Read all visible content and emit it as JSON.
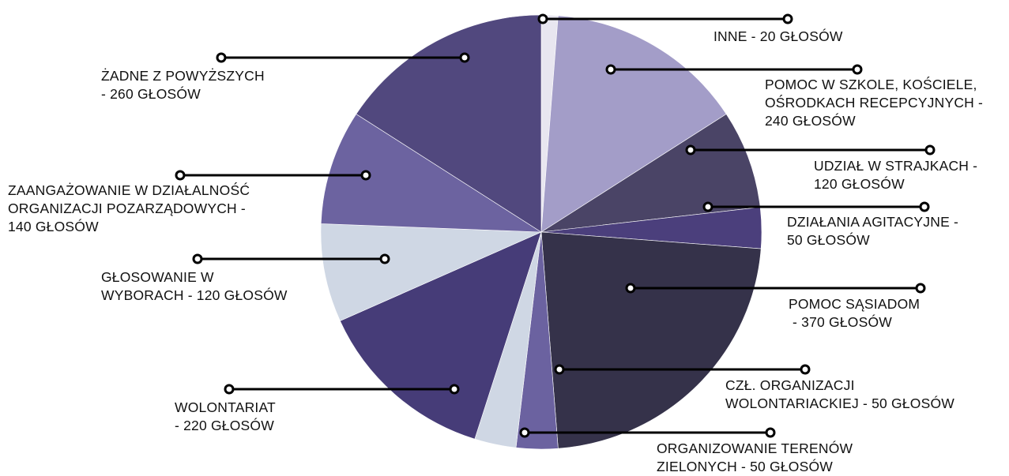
{
  "chart_data": {
    "type": "pie",
    "slices": [
      {
        "label": "INNE - 20 GŁOSÓW",
        "lines": [
          "INNE - 20 GŁOSÓW"
        ],
        "value": 20,
        "color": "#e8e6f0"
      },
      {
        "label": "POMOC W SZKOLE, KOŚCIELE, OŚRODKACH RECEPCYJNYCH - 240 GŁOSÓW",
        "lines": [
          "POMOC W SZKOLE, KOŚCIELE,",
          "OŚRODKACH RECEPCYJNYCH -",
          "240 GŁOSÓW"
        ],
        "value": 240,
        "color": "#a39dc8"
      },
      {
        "label": "UDZIAŁ W STRAJKACH - 120 GŁOSÓW",
        "lines": [
          "UDZIAŁ W STRAJKACH -",
          "120 GŁOSÓW"
        ],
        "value": 120,
        "color": "#4a4466"
      },
      {
        "label": "DZIAŁANIA AGITACYJNE - 50 GŁOSÓW",
        "lines": [
          "DZIAŁANIA AGITACYJNE -",
          "50 GŁOSÓW"
        ],
        "value": 50,
        "color": "#4b3f7c"
      },
      {
        "label": "POMOC SĄSIADOM - 370 GŁOSÓW",
        "lines": [
          "POMOC SĄSIADOM",
          " - 370 GŁOSÓW"
        ],
        "value": 370,
        "color": "#35324a"
      },
      {
        "label": "CZŁ. ORGANIZACJI WOLONTARIACKIEJ - 50 GŁOSÓW",
        "lines": [
          "CZŁ. ORGANIZACJI",
          "WOLONTARIACKIEJ - 50 GŁOSÓW"
        ],
        "value": 50,
        "color": "#6b62a0"
      },
      {
        "label": "ORGANIZOWANIE TERENÓW ZIELONYCH - 50 GŁOSÓW",
        "lines": [
          "ORGANIZOWANIE TERENÓW",
          "ZIELONYCH - 50 GŁOSÓW"
        ],
        "value": 50,
        "color": "#cfd7e4"
      },
      {
        "label": "WOLONTARIAT - 220 GŁOSÓW",
        "lines": [
          "WOLONTARIAT",
          "- 220 GŁOSÓW"
        ],
        "value": 220,
        "color": "#463c78"
      },
      {
        "label": "GŁOSOWANIE W WYBORACH - 120 GŁOSÓW",
        "lines": [
          "GŁOSOWANIE W",
          "WYBORACH - 120 GŁOSÓW"
        ],
        "value": 120,
        "color": "#cfd7e4"
      },
      {
        "label": "ZAANGAŻOWANIE W DZIAŁALNOŚĆ ORGANIZACJI POZARZĄDOWYCH - 140 GŁOSÓW",
        "lines": [
          "ZAANGAŻOWANIE W DZIAŁALNOŚĆ",
          "ORGANIZACJI POZARZĄDOWYCH -",
          "140 GŁOSÓW"
        ],
        "value": 140,
        "color": "#6c63a0"
      },
      {
        "label": "ŻADNE Z POWYŻSZYCH - 260 GŁOSÓW",
        "lines": [
          "ŻADNE Z POWYŻSZYCH",
          "- 260 GŁOSÓW"
        ],
        "value": 260,
        "color": "#51487e"
      }
    ]
  }
}
